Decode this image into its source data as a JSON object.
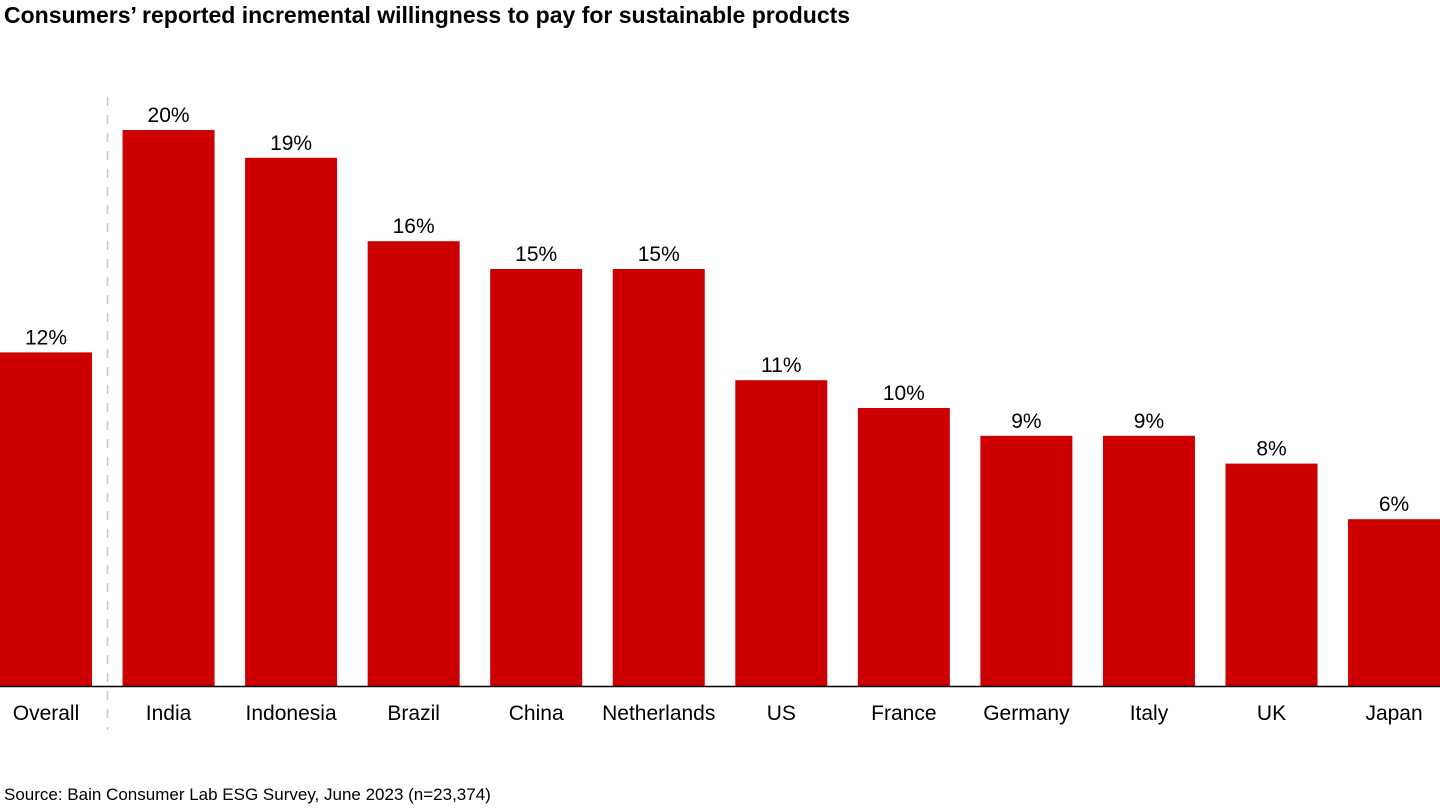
{
  "chart_data": {
    "type": "bar",
    "title": "Consumers’ reported incremental willingness to pay for sustainable products",
    "categories": [
      "Overall",
      "India",
      "Indonesia",
      "Brazil",
      "China",
      "Netherlands",
      "US",
      "France",
      "Germany",
      "Italy",
      "UK",
      "Japan"
    ],
    "values": [
      12,
      20,
      19,
      16,
      15,
      15,
      11,
      10,
      9,
      9,
      8,
      6
    ],
    "data_labels": [
      "12%",
      "20%",
      "19%",
      "16%",
      "15%",
      "15%",
      "11%",
      "10%",
      "9%",
      "9%",
      "8%",
      "6%"
    ],
    "unit": "%",
    "xlabel": "",
    "ylabel": "",
    "ylim": [
      0,
      20
    ],
    "grid": false,
    "legend": "none",
    "bar_color": "#cc0000",
    "separator_after": "Overall",
    "source": "Source: Bain Consumer Lab ESG Survey, June 2023 (n=23,374)"
  }
}
